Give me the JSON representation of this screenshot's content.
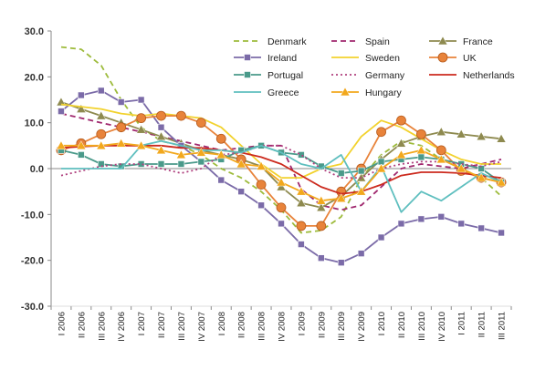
{
  "chart_data": {
    "type": "line",
    "title": "",
    "xlabel": "",
    "ylabel": "",
    "ylim": [
      -30,
      30
    ],
    "yticks": [
      "30.0",
      "20.0",
      "10.0",
      "0.0",
      "-10.0",
      "-20.0",
      "-30.0"
    ],
    "ytick_values": [
      30,
      20,
      10,
      0,
      -10,
      -20,
      -30
    ],
    "grid": false,
    "legend_position": "top-right",
    "categories": [
      "I 2006",
      "II 2006",
      "III 2006",
      "IV 2006",
      "I 2007",
      "II 2007",
      "III 2007",
      "IV 2007",
      "I 2008",
      "II 2008",
      "III 2008",
      "IV 2008",
      "I 2009",
      "II 2009",
      "III 2009",
      "IV 2009",
      "I 2010",
      "II 2010",
      "III 2010",
      "IV 2010",
      "I 2011",
      "II 2011",
      "III 2011"
    ],
    "series": [
      {
        "name": "Denmark",
        "color": "#9dbb3b",
        "style": "dashed",
        "marker": "none",
        "values": [
          26.5,
          26,
          22.5,
          15,
          9,
          6,
          5,
          3,
          0,
          -2,
          -5,
          -9,
          -14,
          -13.5,
          -10.5,
          -2,
          3,
          6,
          5,
          2,
          0,
          -2,
          -6
        ]
      },
      {
        "name": "Spain",
        "color": "#a0286e",
        "style": "dashed",
        "marker": "none",
        "values": [
          12,
          11,
          10,
          9,
          8,
          7,
          6,
          5,
          4,
          4.5,
          5,
          5,
          -4.5,
          -8,
          -9,
          -8,
          -4,
          0,
          1,
          0.5,
          0,
          1,
          2
        ]
      },
      {
        "name": "France",
        "color": "#8e8a4f",
        "style": "solid",
        "marker": "triangle",
        "values": [
          14.5,
          13,
          11.5,
          10,
          8.5,
          7,
          5.5,
          4,
          3,
          2,
          0.5,
          -4,
          -7.5,
          -8.5,
          -6,
          -2,
          2,
          5.5,
          7,
          8,
          7.5,
          7,
          6.5
        ]
      },
      {
        "name": "Ireland",
        "color": "#7b6ba8",
        "style": "solid",
        "marker": "square",
        "values": [
          12.5,
          16,
          17,
          14.5,
          15,
          9,
          5,
          1.5,
          -2.5,
          -5,
          -8,
          -12,
          -16.5,
          -19.5,
          -20.5,
          -18.5,
          -15,
          -12,
          -11,
          -10.5,
          -12,
          -13,
          -14
        ]
      },
      {
        "name": "Sweden",
        "color": "#f2d22e",
        "style": "solid",
        "marker": "none",
        "values": [
          14,
          13.5,
          13,
          12,
          11.5,
          12,
          11.5,
          11,
          9,
          5,
          1,
          -2,
          -2,
          0,
          1,
          7,
          10.5,
          9,
          6.5,
          4,
          2,
          1,
          1
        ]
      },
      {
        "name": "UK",
        "color": "#e8833a",
        "style": "solid",
        "marker": "circle",
        "values": [
          4,
          5.5,
          7.5,
          9,
          11,
          11.5,
          11.5,
          10,
          6.5,
          2,
          -3.5,
          -8.5,
          -12.5,
          -12.5,
          -5,
          0,
          8,
          10.5,
          7.5,
          4,
          -0.5,
          -2,
          -3
        ]
      },
      {
        "name": "Portugal",
        "color": "#4a9a8a",
        "style": "solid",
        "marker": "square",
        "values": [
          4,
          3,
          1,
          0.5,
          1,
          1,
          1,
          1.5,
          2,
          4,
          5,
          3.5,
          3,
          0.5,
          -1,
          -0.5,
          1.5,
          2,
          2.5,
          2,
          1,
          0,
          -3
        ]
      },
      {
        "name": "Germany",
        "color": "#b0417f",
        "style": "dotted",
        "marker": "none",
        "values": [
          -1.5,
          -0.5,
          0.5,
          1,
          1,
          0,
          -1,
          0,
          3,
          3.5,
          5,
          5,
          3,
          0,
          -2,
          -2,
          0,
          1,
          1.5,
          1.5,
          1,
          0.5,
          1.5
        ]
      },
      {
        "name": "Netherlands",
        "color": "#cc2a1e",
        "style": "solid",
        "marker": "none",
        "values": [
          4.5,
          4.8,
          5,
          5,
          5,
          5,
          4.5,
          4.5,
          4,
          3.5,
          2.5,
          1,
          -1.5,
          -4,
          -5.5,
          -5,
          -3.5,
          -1.5,
          -0.8,
          -0.8,
          -1,
          -1.5,
          -2
        ]
      },
      {
        "name": "Greece",
        "color": "#5fbfbf",
        "style": "solid",
        "marker": "none",
        "values": [
          0,
          0,
          0,
          0,
          5,
          6,
          5,
          4,
          4,
          3.5,
          5,
          3.5,
          1,
          0,
          3,
          -5,
          0.5,
          -9.5,
          -5,
          -7,
          -4,
          -1,
          -3
        ]
      },
      {
        "name": "Hungary",
        "color": "#f2a81d",
        "style": "solid",
        "marker": "triangle",
        "values": [
          5,
          5,
          5,
          5.5,
          5,
          4,
          3,
          3.5,
          3,
          1,
          0.5,
          -3,
          -5,
          -7,
          -6.5,
          -5,
          0,
          3,
          4,
          2,
          0,
          -2,
          -3
        ]
      }
    ]
  }
}
